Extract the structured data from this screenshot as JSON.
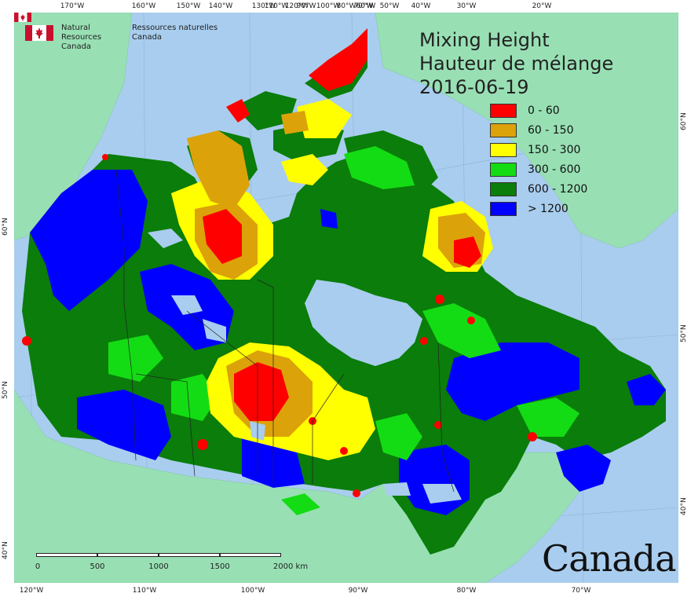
{
  "map": {
    "title_en": "Mixing Height",
    "title_fr": "Hauteur de mélange",
    "date": "2016-06-19",
    "agency_en_line1": "Natural Resources",
    "agency_en_line2": "Canada",
    "agency_fr_line1": "Ressources naturelles",
    "agency_fr_line2": "Canada",
    "wordmark": "Canada",
    "colors": {
      "ocean": "#a9cdee",
      "land_other": "#98e0b4",
      "c0": "#ff0000",
      "c1": "#dca20a",
      "c2": "#ffff00",
      "c3": "#14dc14",
      "c4": "#0a7d0a",
      "c5": "#0000ff"
    }
  },
  "legend": {
    "items": [
      {
        "label": "0 - 60",
        "color": "#ff0000"
      },
      {
        "label": "60 - 150",
        "color": "#dca20a"
      },
      {
        "label": "150 - 300",
        "color": "#ffff00"
      },
      {
        "label": "300 - 600",
        "color": "#14dc14"
      },
      {
        "label": "600 - 1200",
        "color": "#0a7d0a"
      },
      {
        "label": "> 1200",
        "color": "#0000ff"
      }
    ]
  },
  "scale_bar": {
    "labels": [
      "0",
      "500",
      "1000",
      "1500",
      "2000 km"
    ]
  },
  "graticule": {
    "top": [
      "170°W",
      "160°W",
      "150°W",
      "140°W",
      "130°W",
      "120°W",
      "110°W",
      "100°W",
      "90°W",
      "80°W",
      "70°W",
      "60°W",
      "50°W",
      "40°W",
      "30°W",
      "20°W"
    ],
    "bottom": [
      "120°W",
      "110°W",
      "100°W",
      "90°W",
      "80°W",
      "70°W"
    ],
    "left": [
      "60°N",
      "50°N",
      "40°N"
    ],
    "right": [
      "60°N",
      "50°N",
      "40°N"
    ]
  }
}
